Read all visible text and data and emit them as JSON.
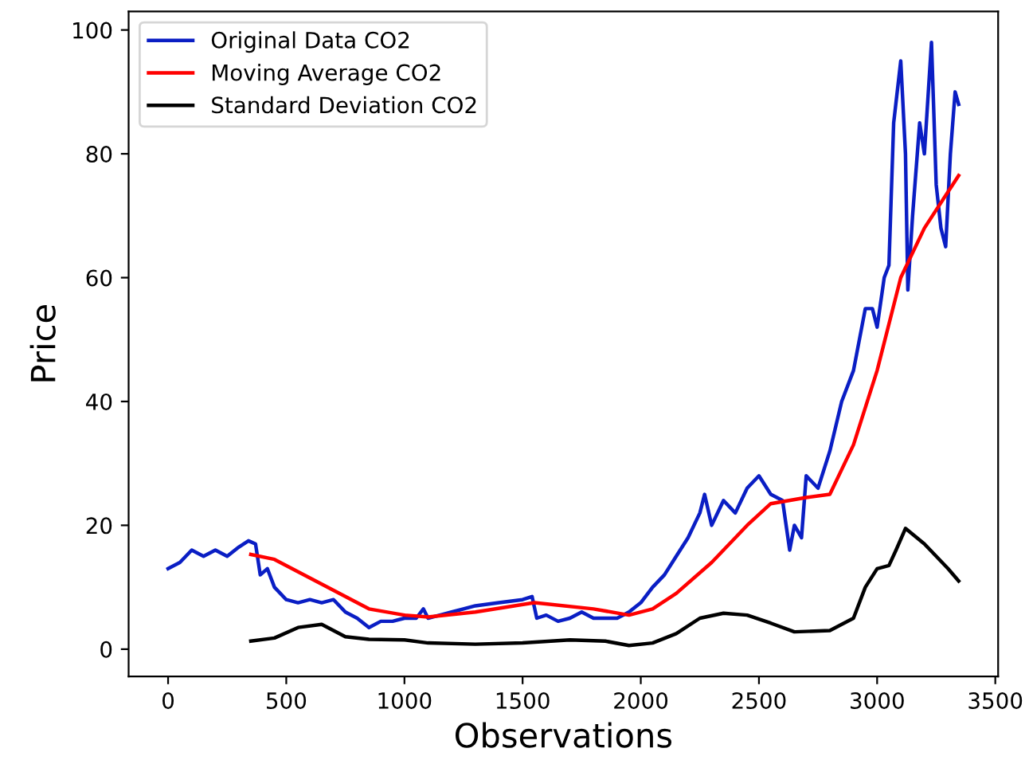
{
  "chart_data": {
    "type": "line",
    "xlabel": "Observations",
    "ylabel": "Price",
    "xlim": [
      -167,
      3512
    ],
    "ylim": [
      -4.4,
      103
    ],
    "xticks": [
      0,
      500,
      1000,
      1500,
      2000,
      2500,
      3000,
      3500
    ],
    "yticks": [
      0,
      20,
      40,
      60,
      80,
      100
    ],
    "grid": false,
    "legend": "top left",
    "line_style": "solid",
    "marker": "none",
    "series": [
      {
        "name": "Original Data CO2",
        "color": "#0a1ec4",
        "x": [
          0,
          50,
          100,
          150,
          200,
          250,
          300,
          340,
          370,
          390,
          420,
          450,
          500,
          550,
          600,
          650,
          700,
          750,
          800,
          850,
          900,
          950,
          1000,
          1050,
          1080,
          1100,
          1150,
          1200,
          1300,
          1400,
          1500,
          1540,
          1560,
          1600,
          1650,
          1700,
          1750,
          1800,
          1850,
          1900,
          1950,
          2000,
          2050,
          2100,
          2150,
          2200,
          2250,
          2270,
          2300,
          2350,
          2400,
          2450,
          2500,
          2550,
          2600,
          2630,
          2650,
          2680,
          2700,
          2750,
          2800,
          2850,
          2900,
          2950,
          2980,
          3000,
          3030,
          3050,
          3070,
          3100,
          3120,
          3130,
          3150,
          3180,
          3200,
          3230,
          3250,
          3270,
          3290,
          3310,
          3330,
          3345
        ],
        "values": [
          13,
          14,
          16,
          15,
          16,
          15,
          16.5,
          17.5,
          17,
          12,
          13,
          10,
          8,
          7.5,
          8,
          7.5,
          8,
          6,
          5,
          3.5,
          4.5,
          4.5,
          5,
          5,
          6.5,
          5,
          5.5,
          6,
          7,
          7.5,
          8,
          8.5,
          5,
          5.5,
          4.5,
          5,
          6,
          5,
          5,
          5,
          6,
          7.5,
          10,
          12,
          15,
          18,
          22,
          25,
          20,
          24,
          22,
          26,
          28,
          25,
          24,
          16,
          20,
          18,
          28,
          26,
          32,
          40,
          45,
          55,
          55,
          52,
          60,
          62,
          85,
          95,
          80,
          58,
          70,
          85,
          80,
          98,
          75,
          68,
          65,
          80,
          90,
          88
        ]
      },
      {
        "name": "Moving Average CO2",
        "color": "#ff0000",
        "x": [
          350,
          450,
          550,
          700,
          850,
          1000,
          1100,
          1300,
          1550,
          1800,
          1950,
          2050,
          2150,
          2300,
          2450,
          2550,
          2700,
          2800,
          2900,
          3000,
          3100,
          3200,
          3345
        ],
        "values": [
          15.3,
          14.5,
          12.5,
          9.5,
          6.5,
          5.5,
          5.2,
          6,
          7.5,
          6.5,
          5.5,
          6.5,
          9,
          14,
          20,
          23.5,
          24.5,
          25,
          33,
          45,
          60,
          68,
          76.5
        ]
      },
      {
        "name": "Standard Deviation CO2",
        "color": "#000000",
        "x": [
          350,
          450,
          550,
          650,
          750,
          850,
          1000,
          1100,
          1300,
          1500,
          1700,
          1850,
          1950,
          2050,
          2150,
          2250,
          2350,
          2450,
          2550,
          2650,
          2800,
          2900,
          2950,
          3000,
          3050,
          3080,
          3120,
          3200,
          3300,
          3345
        ],
        "values": [
          1.3,
          1.8,
          3.5,
          4,
          2,
          1.6,
          1.5,
          1,
          0.8,
          1,
          1.5,
          1.3,
          0.6,
          1,
          2.5,
          5,
          5.8,
          5.5,
          4.2,
          2.8,
          3,
          5,
          10,
          13,
          13.5,
          16,
          19.5,
          17,
          13,
          11
        ]
      }
    ]
  }
}
